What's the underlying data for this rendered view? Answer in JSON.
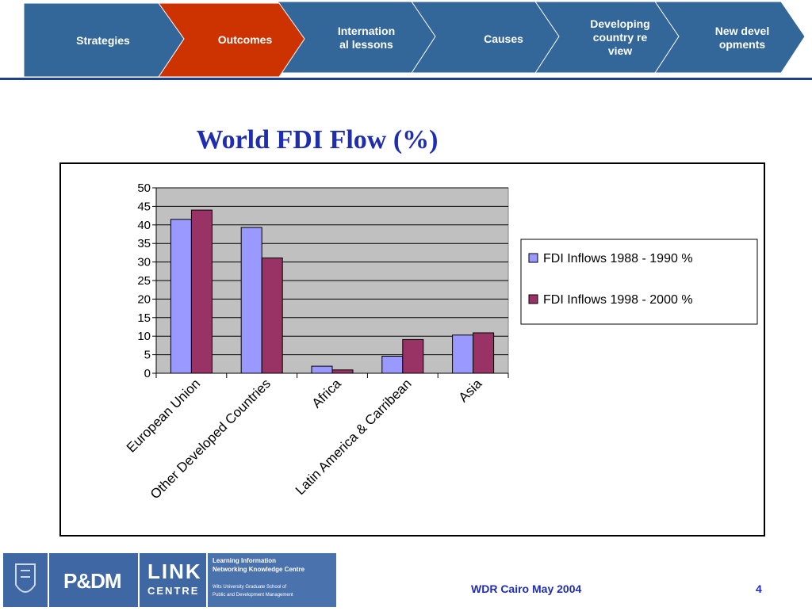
{
  "nav": {
    "tabs": [
      {
        "label": "Strategies",
        "active": false
      },
      {
        "label": "Outcomes",
        "active": true
      },
      {
        "label": "International lessons",
        "active": false
      },
      {
        "label": "Causes",
        "active": false
      },
      {
        "label": "Developing country review",
        "active": false
      },
      {
        "label": "New developments",
        "active": false
      }
    ],
    "colors": {
      "tab": "#336699",
      "active_tab": "#cc3300",
      "rule": "#1f3f8f"
    }
  },
  "chart_data": {
    "type": "bar",
    "title": "World FDI Flow (%)",
    "categories": [
      "European Union",
      "Other Developed Countries",
      "Africa",
      "Latin America & Carribean",
      "Asia"
    ],
    "series": [
      {
        "name": "FDI Inflows 1988 - 1990 %",
        "color": "#9999ff",
        "values": [
          41.5,
          39.3,
          1.9,
          4.6,
          10.3
        ]
      },
      {
        "name": "FDI Inflows 1998 - 2000 %",
        "color": "#993366",
        "values": [
          44,
          31.1,
          0.9,
          9.1,
          10.9
        ]
      }
    ],
    "ylim": [
      0,
      50
    ],
    "yticks": [
      0,
      5,
      10,
      15,
      20,
      25,
      30,
      35,
      40,
      45,
      50
    ],
    "grid": true,
    "plot_background": "#c0c0c0",
    "legend": "right"
  },
  "footer": {
    "logo_link": "LINK",
    "logo_centre": "CENTRE",
    "logo_pdm": "P&DM",
    "logo_line1": "Learning Information",
    "logo_line2": "Networking Knowledge Centre",
    "logo_line3": "Wits University Graduate School of",
    "logo_line4": "Public and Development Management",
    "event": "WDR Cairo May 2004",
    "page": "4"
  }
}
